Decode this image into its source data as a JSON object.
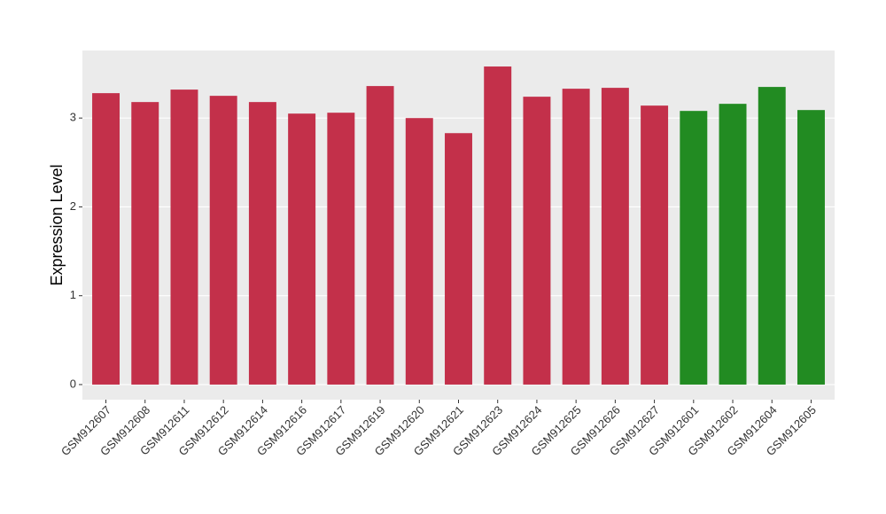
{
  "chart_data": {
    "type": "bar",
    "y_label": "Expression Level",
    "categories": [
      "GSM912607",
      "GSM912608",
      "GSM912611",
      "GSM912612",
      "GSM912614",
      "GSM912616",
      "GSM912617",
      "GSM912619",
      "GSM912620",
      "GSM912621",
      "GSM912623",
      "GSM912624",
      "GSM912625",
      "GSM912626",
      "GSM912627",
      "GSM912601",
      "GSM912602",
      "GSM912604",
      "GSM912605"
    ],
    "values": [
      3.28,
      3.18,
      3.32,
      3.25,
      3.18,
      3.05,
      3.06,
      3.36,
      3.0,
      2.83,
      3.58,
      3.24,
      3.33,
      3.34,
      3.14,
      3.08,
      3.16,
      3.35,
      3.09
    ],
    "colors": [
      "#c3304a",
      "#c3304a",
      "#c3304a",
      "#c3304a",
      "#c3304a",
      "#c3304a",
      "#c3304a",
      "#c3304a",
      "#c3304a",
      "#c3304a",
      "#c3304a",
      "#c3304a",
      "#c3304a",
      "#c3304a",
      "#c3304a",
      "#228b22",
      "#228b22",
      "#228b22",
      "#228b22"
    ],
    "ylim": [
      -0.17,
      3.76
    ],
    "yticks": [
      0,
      1,
      2,
      3
    ],
    "grid": true
  }
}
